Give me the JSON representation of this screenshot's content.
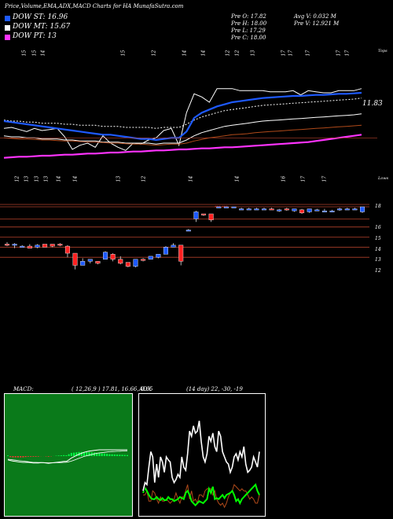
{
  "header": {
    "title": "Price,Volume,EMA,ADX,MACD Charts for HA MunafaSutra.com",
    "ohlc": {
      "open_label": "Pre O: 17.82",
      "high_label": "Pre H: 18.00",
      "low_label": "Pre L: 17.29",
      "close_label": "Pre C: 18.00"
    },
    "avg_vol": "Avg V: 0.032 M",
    "pre_vol": "Pre V: 12.921 M"
  },
  "legend": [
    {
      "label": "DOW ST: 16.96",
      "color": "#1e5aff"
    },
    {
      "label": "DOW MT: 15.67",
      "color": "#ffffff"
    },
    {
      "label": "DOW PT: 13",
      "color": "#ff33ff"
    }
  ],
  "labels": {
    "ema_value": "11.83",
    "tops": "Tops",
    "lows": "Lows",
    "dots": "*** ***",
    "macd": "MACD:",
    "macd_params": "( 12,26,9 ) 17.81, 16.66, 0.65",
    "adx": "ADX",
    "adx_params": "(14 day) 22, -30, -19"
  },
  "chart_data": [
    {
      "type": "candlestick",
      "title": "",
      "top_tick_labels": [
        "15",
        "15",
        "14",
        "15",
        "12",
        "14",
        "14",
        "12",
        "12",
        "13",
        "17",
        "17",
        "17",
        "17",
        "17"
      ],
      "bottom_tick_labels": [
        "12",
        "13",
        "13",
        "13",
        "14",
        "14",
        "13",
        "12",
        "14",
        "14",
        "16",
        "17",
        "17"
      ],
      "y_tick_labels": [
        "18",
        "16",
        "15",
        "14",
        "13",
        "12"
      ],
      "candles": [
        {
          "o": 14.3,
          "h": 14.5,
          "l": 14.1,
          "c": 14.2
        },
        {
          "o": 14.2,
          "h": 14.4,
          "l": 13.9,
          "c": 14.3
        },
        {
          "o": 14.1,
          "h": 14.2,
          "l": 14.0,
          "c": 14.1
        },
        {
          "o": 14.1,
          "h": 14.3,
          "l": 13.9,
          "c": 13.9
        },
        {
          "o": 14.0,
          "h": 14.3,
          "l": 13.9,
          "c": 14.2
        },
        {
          "o": 14.3,
          "h": 14.3,
          "l": 14.0,
          "c": 14.0
        },
        {
          "o": 14.3,
          "h": 14.3,
          "l": 14.0,
          "c": 14.1
        },
        {
          "o": 14.3,
          "h": 14.4,
          "l": 14.1,
          "c": 14.2
        },
        {
          "o": 14.1,
          "h": 14.2,
          "l": 13.0,
          "c": 13.4
        },
        {
          "o": 13.4,
          "h": 13.4,
          "l": 11.8,
          "c": 12.2
        },
        {
          "o": 12.2,
          "h": 12.9,
          "l": 12.2,
          "c": 12.6
        },
        {
          "o": 12.6,
          "h": 12.8,
          "l": 12.4,
          "c": 12.8
        },
        {
          "o": 12.6,
          "h": 12.6,
          "l": 12.3,
          "c": 12.4
        },
        {
          "o": 12.8,
          "h": 13.6,
          "l": 12.8,
          "c": 13.5
        },
        {
          "o": 13.3,
          "h": 13.4,
          "l": 12.6,
          "c": 12.8
        },
        {
          "o": 12.8,
          "h": 13.1,
          "l": 12.3,
          "c": 12.4
        },
        {
          "o": 12.5,
          "h": 12.5,
          "l": 12.0,
          "c": 12.1
        },
        {
          "o": 12.1,
          "h": 12.8,
          "l": 12.0,
          "c": 12.8
        },
        {
          "o": 12.8,
          "h": 12.9,
          "l": 12.6,
          "c": 12.7
        },
        {
          "o": 12.8,
          "h": 13.1,
          "l": 12.8,
          "c": 13.1
        },
        {
          "o": 13.0,
          "h": 13.3,
          "l": 12.9,
          "c": 13.3
        },
        {
          "o": 13.3,
          "h": 14.1,
          "l": 13.3,
          "c": 14.0
        },
        {
          "o": 14.0,
          "h": 14.4,
          "l": 14.0,
          "c": 14.2
        },
        {
          "o": 14.2,
          "h": 14.2,
          "l": 12.2,
          "c": 12.6
        },
        {
          "o": 15.7,
          "h": 15.8,
          "l": 15.6,
          "c": 15.7
        },
        {
          "o": 16.8,
          "h": 17.6,
          "l": 16.5,
          "c": 17.5
        },
        {
          "o": 17.3,
          "h": 17.3,
          "l": 17.1,
          "c": 17.2
        },
        {
          "o": 17.3,
          "h": 17.3,
          "l": 16.5,
          "c": 16.7
        },
        {
          "o": 18.0,
          "h": 18.0,
          "l": 18.0,
          "c": 18.0
        },
        {
          "o": 18.0,
          "h": 18.0,
          "l": 18.0,
          "c": 18.0
        },
        {
          "o": 18.0,
          "h": 18.0,
          "l": 18.0,
          "c": 18.0
        },
        {
          "o": 17.8,
          "h": 17.9,
          "l": 17.7,
          "c": 17.8
        },
        {
          "o": 17.8,
          "h": 17.9,
          "l": 17.7,
          "c": 17.8
        },
        {
          "o": 17.8,
          "h": 17.9,
          "l": 17.7,
          "c": 17.8
        },
        {
          "o": 17.8,
          "h": 17.9,
          "l": 17.7,
          "c": 17.8
        },
        {
          "o": 17.8,
          "h": 17.9,
          "l": 17.7,
          "c": 17.7
        },
        {
          "o": 17.7,
          "h": 17.8,
          "l": 17.5,
          "c": 17.7
        },
        {
          "o": 17.8,
          "h": 17.9,
          "l": 17.6,
          "c": 17.7
        },
        {
          "o": 17.6,
          "h": 17.8,
          "l": 17.5,
          "c": 17.8
        },
        {
          "o": 17.7,
          "h": 17.8,
          "l": 17.3,
          "c": 17.4
        },
        {
          "o": 17.5,
          "h": 17.8,
          "l": 17.4,
          "c": 17.8
        },
        {
          "o": 17.7,
          "h": 17.8,
          "l": 17.6,
          "c": 17.7
        },
        {
          "o": 17.6,
          "h": 17.8,
          "l": 17.5,
          "c": 17.6
        },
        {
          "o": 17.6,
          "h": 17.7,
          "l": 17.5,
          "c": 17.6
        },
        {
          "o": 17.7,
          "h": 17.9,
          "l": 17.6,
          "c": 17.8
        },
        {
          "o": 17.8,
          "h": 17.9,
          "l": 17.7,
          "c": 17.8
        },
        {
          "o": 17.8,
          "h": 17.9,
          "l": 17.7,
          "c": 17.8
        },
        {
          "o": 17.5,
          "h": 18.0,
          "l": 17.4,
          "c": 18.0
        }
      ],
      "h_levels": [
        18,
        16.8,
        16,
        15,
        14,
        13
      ]
    },
    {
      "type": "line",
      "title": "",
      "series": [
        {
          "color": "#1e5aff",
          "values": [
            15.2,
            15.1,
            15.0,
            14.9,
            14.8,
            14.7,
            14.6,
            14.5,
            14.4,
            14.3,
            14.2,
            14.1,
            14.0,
            13.9,
            13.9,
            13.8,
            13.7,
            13.6,
            13.5,
            13.5,
            13.4,
            13.5,
            13.6,
            13.6,
            14.2,
            15.5,
            16.0,
            16.3,
            16.6,
            16.8,
            17.0,
            17.1,
            17.2,
            17.3,
            17.4,
            17.45,
            17.5,
            17.55,
            17.6,
            17.6,
            17.65,
            17.7,
            17.7,
            17.75,
            17.8,
            17.8,
            17.85,
            17.9
          ]
        },
        {
          "color": "#ffffff",
          "values": [
            13.8,
            13.7,
            13.7,
            13.6,
            13.6,
            13.5,
            13.5,
            13.5,
            13.4,
            13.4,
            13.3,
            13.3,
            13.3,
            13.2,
            13.2,
            13.2,
            13.1,
            13.1,
            13.1,
            13.1,
            13.0,
            13.1,
            13.1,
            13.1,
            13.4,
            13.8,
            14.1,
            14.3,
            14.5,
            14.7,
            14.8,
            14.9,
            15.0,
            15.1,
            15.2,
            15.25,
            15.3,
            15.35,
            15.4,
            15.45,
            15.5,
            15.55,
            15.6,
            15.65,
            15.7,
            15.75,
            15.8,
            15.9
          ]
        },
        {
          "color": "#b04a1a",
          "values": [
            13.6,
            13.55,
            13.5,
            13.5,
            13.45,
            13.4,
            13.4,
            13.35,
            13.3,
            13.3,
            13.25,
            13.2,
            13.2,
            13.15,
            13.1,
            13.1,
            13.05,
            13.0,
            13.0,
            12.95,
            12.9,
            12.95,
            13.0,
            13.0,
            13.1,
            13.3,
            13.45,
            13.6,
            13.7,
            13.8,
            13.9,
            13.95,
            14.0,
            14.1,
            14.15,
            14.2,
            14.25,
            14.3,
            14.35,
            14.4,
            14.45,
            14.5,
            14.55,
            14.6,
            14.65,
            14.7,
            14.75,
            14.8
          ]
        },
        {
          "color": "#ff33ff",
          "values": [
            11.7,
            11.75,
            11.8,
            11.8,
            11.85,
            11.9,
            11.9,
            11.95,
            12.0,
            12.0,
            12.05,
            12.1,
            12.1,
            12.15,
            12.2,
            12.2,
            12.25,
            12.3,
            12.3,
            12.35,
            12.4,
            12.4,
            12.45,
            12.5,
            12.5,
            12.55,
            12.6,
            12.6,
            12.65,
            12.7,
            12.7,
            12.75,
            12.8,
            12.85,
            12.9,
            12.95,
            13.0,
            13.05,
            13.1,
            13.15,
            13.2,
            13.3,
            13.4,
            13.5,
            13.6,
            13.7,
            13.8,
            13.9
          ]
        }
      ]
    },
    {
      "type": "line",
      "title": "",
      "series": [
        {
          "color": "#ffffff",
          "values": [
            -0.6,
            -0.7,
            -0.8,
            -0.85,
            -0.9,
            -0.95,
            -1.0,
            -1.0,
            -1.0,
            -1.05,
            -1.1,
            -1.1,
            -1.1,
            -1.05,
            -1.05,
            -1.1,
            -1.15,
            -1.1,
            -1.05,
            -1.0,
            -0.95,
            -0.9,
            -0.85,
            -0.85,
            -0.6,
            -0.3,
            -0.1,
            0.1,
            0.3,
            0.45,
            0.6,
            0.7,
            0.8,
            0.85,
            0.9,
            0.95,
            1.0,
            1.0,
            1.0,
            1.0,
            1.0,
            1.0,
            1.0,
            1.0,
            1.0,
            1.0,
            1.0,
            1.0
          ]
        },
        {
          "color": "#ffffff",
          "values": [
            -0.5,
            -0.55,
            -0.6,
            -0.65,
            -0.7,
            -0.75,
            -0.8,
            -0.85,
            -0.9,
            -0.95,
            -1.0,
            -1.0,
            -1.02,
            -1.03,
            -1.04,
            -1.05,
            -1.06,
            -1.06,
            -1.06,
            -1.05,
            -1.04,
            -1.02,
            -1.0,
            -0.98,
            -0.9,
            -0.8,
            -0.65,
            -0.5,
            -0.35,
            -0.2,
            -0.05,
            0.05,
            0.15,
            0.25,
            0.35,
            0.45,
            0.5,
            0.55,
            0.6,
            0.65,
            0.7,
            0.72,
            0.74,
            0.76,
            0.78,
            0.8,
            0.82,
            0.84
          ]
        }
      ],
      "histogram": [
        0.1,
        -0.15,
        -0.2,
        -0.2,
        -0.2,
        -0.2,
        -0.2,
        -0.15,
        -0.1,
        -0.1,
        -0.1,
        -0.1,
        -0.08,
        -0.02,
        -0.01,
        -0.05,
        -0.09,
        -0.04,
        0.01,
        0.05,
        0.09,
        0.12,
        0.15,
        0.13,
        0.3,
        0.5,
        0.55,
        0.6,
        0.65,
        0.65,
        0.65,
        0.65,
        0.65,
        0.6,
        0.55,
        0.5,
        0.5,
        0.45,
        0.4,
        0.35,
        0.3,
        0.28,
        0.26,
        0.24,
        0.22,
        0.2,
        0.18,
        0.16
      ],
      "ylim": [
        -3,
        3
      ]
    },
    {
      "type": "line",
      "title": "",
      "series": [
        {
          "color": "#ffffff",
          "values": [
            22,
            30,
            28,
            45,
            60,
            55,
            30,
            48,
            35,
            55,
            50,
            40,
            55,
            52,
            50,
            35,
            30,
            33,
            38,
            35,
            55,
            45,
            42,
            58,
            80,
            75,
            85,
            78,
            80,
            90,
            70,
            55,
            50,
            58,
            75,
            70,
            78,
            65,
            60,
            80,
            75,
            60,
            55,
            50,
            48,
            40,
            45,
            55,
            58,
            52,
            60,
            55,
            65,
            48,
            40,
            42,
            45,
            55,
            50,
            45,
            60
          ]
        },
        {
          "color": "#00ff00",
          "values": [
            20,
            25,
            22,
            18,
            15,
            14,
            14,
            16,
            14,
            13,
            15,
            13,
            13,
            16,
            14,
            14,
            12,
            13,
            14,
            16,
            15,
            14,
            20,
            22,
            18,
            12,
            10,
            8,
            10,
            12,
            11,
            10,
            12,
            14,
            24,
            20,
            26,
            14,
            15,
            14,
            16,
            18,
            15,
            18,
            19,
            20,
            22,
            18,
            12,
            14,
            10,
            14,
            16,
            18,
            20,
            22,
            24,
            26,
            28,
            22,
            18
          ]
        },
        {
          "color": "#b04a1a",
          "values": [
            18,
            18,
            22,
            12,
            12,
            22,
            20,
            14,
            10,
            16,
            12,
            12,
            14,
            12,
            10,
            12,
            14,
            20,
            14,
            10,
            16,
            16,
            22,
            28,
            14,
            22,
            12,
            14,
            10,
            18,
            18,
            16,
            22,
            24,
            24,
            24,
            18,
            22,
            14,
            10,
            8,
            10,
            6,
            10,
            16,
            20,
            22,
            28,
            26,
            24,
            22,
            24,
            22,
            22,
            18,
            14,
            16,
            14,
            10,
            10,
            18
          ]
        }
      ],
      "ylim": [
        0,
        100
      ]
    }
  ]
}
